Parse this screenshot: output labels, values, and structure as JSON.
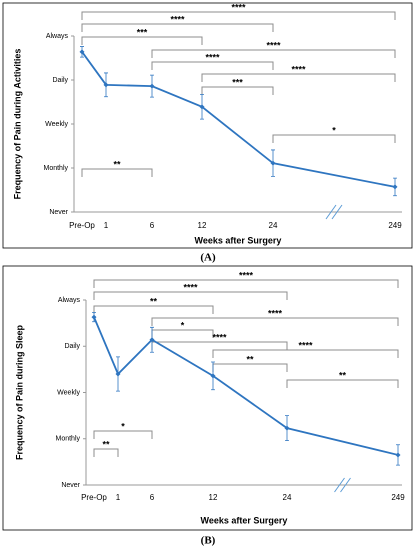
{
  "chart_data": [
    {
      "type": "line",
      "caption": "(A)",
      "ylabel": "Frequency of Pain during Activities",
      "xlabel": "Weeks after Surgery",
      "categories": [
        "Pre-Op",
        "1",
        "6",
        "12",
        "24",
        "249"
      ],
      "values": [
        3.64,
        2.89,
        2.86,
        2.39,
        1.11,
        0.57
      ],
      "errors": [
        0.12,
        0.27,
        0.25,
        0.28,
        0.3,
        0.2
      ],
      "color": "#2e75c0",
      "ylim": [
        0,
        4
      ],
      "yticks": [
        {
          "value": 0,
          "label": "Never"
        },
        {
          "value": 1,
          "label": "Monthly"
        },
        {
          "value": 2,
          "label": "Weekly"
        },
        {
          "value": 3,
          "label": "Daily"
        },
        {
          "value": 4,
          "label": "Always"
        }
      ],
      "brackets": [
        {
          "text": "****",
          "start": "Pre-Op",
          "end": "249"
        },
        {
          "text": "****",
          "start": "Pre-Op",
          "end": "24"
        },
        {
          "text": "***",
          "start": "Pre-Op",
          "end": "12"
        },
        {
          "text": "****",
          "start": "6",
          "end": "249"
        },
        {
          "text": "****",
          "start": "6",
          "end": "24"
        },
        {
          "text": "****",
          "start": "12",
          "end": "249"
        },
        {
          "text": "***",
          "start": "12",
          "end": "24"
        },
        {
          "text": "*",
          "start": "24",
          "end": "249"
        },
        {
          "text": "**",
          "start": "Pre-Op",
          "end": "6"
        }
      ]
    },
    {
      "type": "line",
      "caption": "(B)",
      "ylabel": "Frequency of Pain during Sleep",
      "xlabel": "Weeks after Surgery",
      "categories": [
        "Pre-Op",
        "1",
        "6",
        "12",
        "24",
        "249"
      ],
      "values": [
        3.63,
        2.4,
        3.14,
        2.36,
        1.23,
        0.65
      ],
      "errors": [
        0.1,
        0.37,
        0.27,
        0.3,
        0.27,
        0.22
      ],
      "color": "#2e75c0",
      "ylim": [
        0,
        4
      ],
      "yticks": [
        {
          "value": 0,
          "label": "Never"
        },
        {
          "value": 1,
          "label": "Monthly"
        },
        {
          "value": 2,
          "label": "Weekly"
        },
        {
          "value": 3,
          "label": "Daily"
        },
        {
          "value": 4,
          "label": "Always"
        }
      ],
      "brackets": [
        {
          "text": "****",
          "start": "Pre-Op",
          "end": "249"
        },
        {
          "text": "****",
          "start": "Pre-Op",
          "end": "24"
        },
        {
          "text": "**",
          "start": "Pre-Op",
          "end": "12"
        },
        {
          "text": "****",
          "start": "6",
          "end": "249"
        },
        {
          "text": "*",
          "start": "6",
          "end": "12"
        },
        {
          "text": "****",
          "start": "6",
          "end": "24"
        },
        {
          "text": "****",
          "start": "12",
          "end": "249"
        },
        {
          "text": "**",
          "start": "12",
          "end": "24"
        },
        {
          "text": "**",
          "start": "24",
          "end": "249"
        },
        {
          "text": "*",
          "start": "Pre-Op",
          "end": "6"
        },
        {
          "text": "**",
          "start": "Pre-Op",
          "end": "1"
        }
      ]
    }
  ]
}
